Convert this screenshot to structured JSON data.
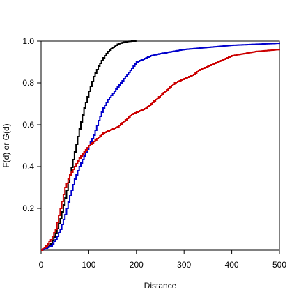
{
  "chart_data": {
    "type": "line",
    "xlabel": "Distance",
    "ylabel": "F(d) or G(d)",
    "xlim": [
      0,
      500
    ],
    "ylim": [
      0,
      1
    ],
    "x_ticks": [
      0,
      100,
      200,
      300,
      400,
      500
    ],
    "y_ticks": [
      0.2,
      0.4,
      0.6,
      0.8,
      1.0
    ],
    "x_tick_labels": [
      "0",
      "100",
      "200",
      "300",
      "400",
      "500"
    ],
    "y_tick_labels": [
      "0.2",
      "0.4",
      "0.6",
      "0.8",
      "1.0"
    ],
    "grid": false,
    "series": [
      {
        "color": "#000000",
        "points": [
          [
            0,
            0
          ],
          [
            10,
            0.01
          ],
          [
            20,
            0.03
          ],
          [
            30,
            0.08
          ],
          [
            40,
            0.15
          ],
          [
            50,
            0.25
          ],
          [
            60,
            0.36
          ],
          [
            70,
            0.47
          ],
          [
            80,
            0.58
          ],
          [
            90,
            0.68
          ],
          [
            100,
            0.76
          ],
          [
            110,
            0.83
          ],
          [
            120,
            0.88
          ],
          [
            130,
            0.92
          ],
          [
            140,
            0.95
          ],
          [
            150,
            0.97
          ],
          [
            160,
            0.985
          ],
          [
            170,
            0.993
          ],
          [
            180,
            0.998
          ],
          [
            190,
            1.0
          ],
          [
            200,
            1.0
          ]
        ]
      },
      {
        "color": "#0000cc",
        "points": [
          [
            0,
            0
          ],
          [
            10,
            0.01
          ],
          [
            20,
            0.02
          ],
          [
            30,
            0.05
          ],
          [
            40,
            0.1
          ],
          [
            50,
            0.17
          ],
          [
            60,
            0.26
          ],
          [
            70,
            0.34
          ],
          [
            80,
            0.4
          ],
          [
            90,
            0.45
          ],
          [
            100,
            0.5
          ],
          [
            110,
            0.55
          ],
          [
            120,
            0.62
          ],
          [
            130,
            0.68
          ],
          [
            140,
            0.72
          ],
          [
            150,
            0.75
          ],
          [
            160,
            0.78
          ],
          [
            170,
            0.81
          ],
          [
            180,
            0.84
          ],
          [
            190,
            0.87
          ],
          [
            200,
            0.9
          ],
          [
            210,
            0.91
          ],
          [
            220,
            0.92
          ],
          [
            230,
            0.93
          ],
          [
            250,
            0.94
          ],
          [
            300,
            0.96
          ],
          [
            350,
            0.97
          ],
          [
            400,
            0.98
          ],
          [
            450,
            0.985
          ],
          [
            500,
            0.99
          ]
        ]
      },
      {
        "color": "#cc0000",
        "points": [
          [
            0,
            0
          ],
          [
            10,
            0.02
          ],
          [
            20,
            0.05
          ],
          [
            30,
            0.1
          ],
          [
            40,
            0.2
          ],
          [
            50,
            0.3
          ],
          [
            60,
            0.36
          ],
          [
            70,
            0.4
          ],
          [
            80,
            0.44
          ],
          [
            90,
            0.47
          ],
          [
            100,
            0.5
          ],
          [
            110,
            0.52
          ],
          [
            120,
            0.54
          ],
          [
            130,
            0.56
          ],
          [
            140,
            0.57
          ],
          [
            150,
            0.58
          ],
          [
            160,
            0.59
          ],
          [
            170,
            0.61
          ],
          [
            180,
            0.63
          ],
          [
            190,
            0.65
          ],
          [
            200,
            0.66
          ],
          [
            210,
            0.67
          ],
          [
            220,
            0.68
          ],
          [
            230,
            0.7
          ],
          [
            240,
            0.72
          ],
          [
            250,
            0.74
          ],
          [
            260,
            0.76
          ],
          [
            270,
            0.78
          ],
          [
            280,
            0.8
          ],
          [
            290,
            0.81
          ],
          [
            300,
            0.82
          ],
          [
            310,
            0.83
          ],
          [
            320,
            0.84
          ],
          [
            330,
            0.86
          ],
          [
            340,
            0.87
          ],
          [
            350,
            0.88
          ],
          [
            360,
            0.89
          ],
          [
            370,
            0.9
          ],
          [
            380,
            0.91
          ],
          [
            390,
            0.92
          ],
          [
            400,
            0.93
          ],
          [
            425,
            0.94
          ],
          [
            450,
            0.95
          ],
          [
            475,
            0.955
          ],
          [
            500,
            0.96
          ]
        ]
      }
    ]
  }
}
